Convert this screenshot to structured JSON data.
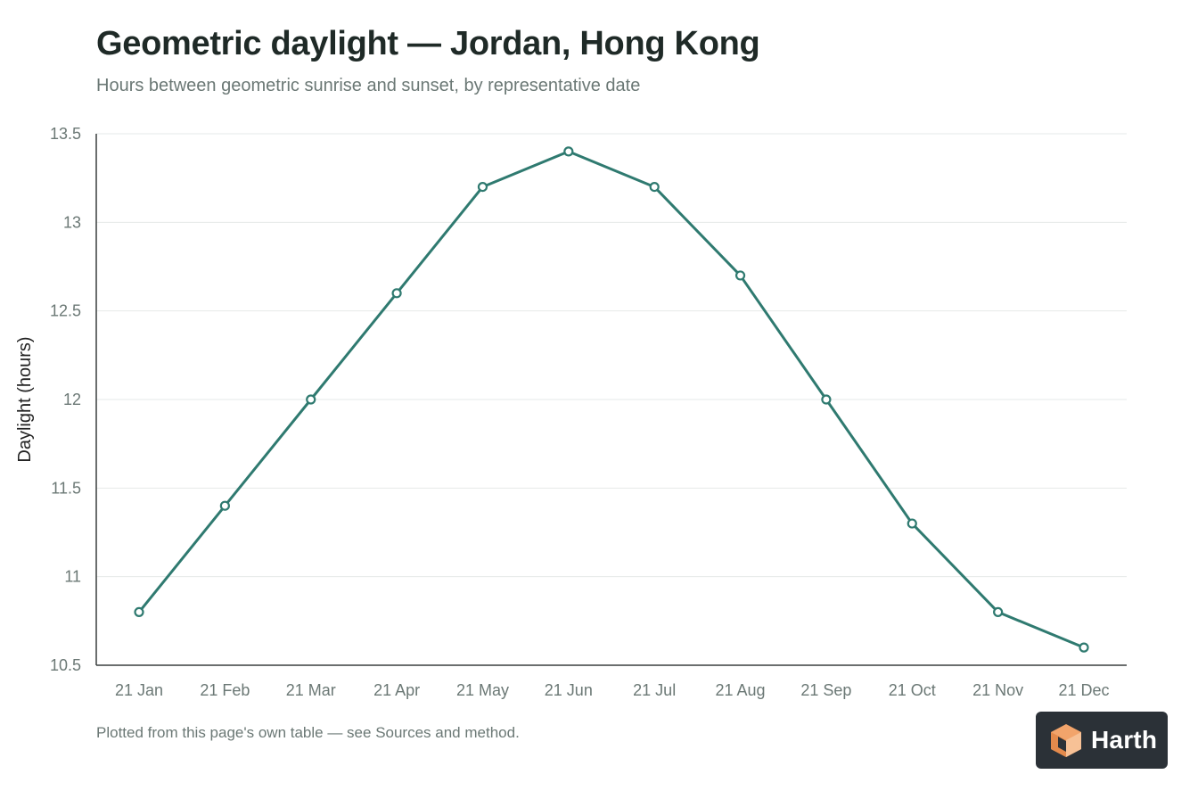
{
  "page": {
    "title": "Geometric daylight — Jordan, Hong Kong",
    "subtitle": "Hours between geometric sunrise and sunset, by representative date",
    "footnote": "Plotted from this page's own table — see Sources and method.",
    "logo_text": "Harth"
  },
  "colors": {
    "line": "#2f7a70",
    "grid": "#e6e9e8",
    "axis": "#3a3f3e",
    "tick_text": "#6b7875",
    "axis_label": "#222222"
  },
  "chart_data": {
    "type": "line",
    "title": "Geometric daylight — Jordan, Hong Kong",
    "subtitle": "Hours between geometric sunrise and sunset, by representative date",
    "xlabel": "",
    "ylabel": "Daylight (hours)",
    "categories": [
      "21 Jan",
      "21 Feb",
      "21 Mar",
      "21 Apr",
      "21 May",
      "21 Jun",
      "21 Jul",
      "21 Aug",
      "21 Sep",
      "21 Oct",
      "21 Nov",
      "21 Dec"
    ],
    "values": [
      10.8,
      11.4,
      12.0,
      12.6,
      13.2,
      13.4,
      13.2,
      12.7,
      12.0,
      11.3,
      10.8,
      10.6
    ],
    "ylim": [
      10.5,
      13.5
    ],
    "yticks": [
      10.5,
      11,
      11.5,
      12,
      12.5,
      13,
      13.5
    ],
    "ytick_labels": [
      "10.5",
      "11",
      "11.5",
      "12",
      "12.5",
      "13",
      "13.5"
    ],
    "grid": true,
    "legend": "none",
    "markers": "hollow circles"
  }
}
